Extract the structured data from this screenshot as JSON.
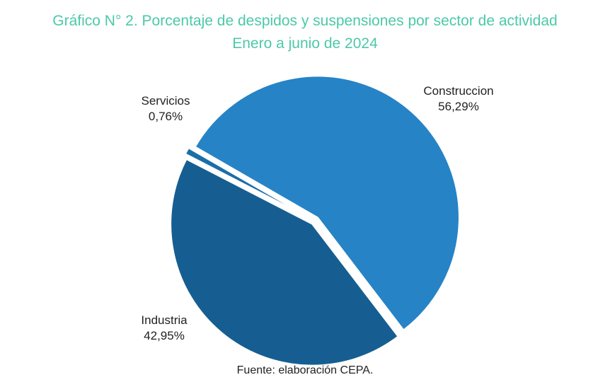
{
  "chart_data": {
    "type": "pie",
    "title": "Gráfico N° 2. Porcentaje de despidos y suspensiones por sector de actividad",
    "subtitle": "Enero a junio de 2024",
    "source": "Fuente: elaboración CEPA.",
    "slices": [
      {
        "label": "Construccion",
        "value": 56.29,
        "value_label": "56,29%",
        "color": "#2683c6"
      },
      {
        "label": "Industria",
        "value": 42.95,
        "value_label": "42,95%",
        "color": "#165e91"
      },
      {
        "label": "Servicios",
        "value": 0.76,
        "value_label": "0,76%",
        "color": "#1a6ea9"
      }
    ]
  }
}
